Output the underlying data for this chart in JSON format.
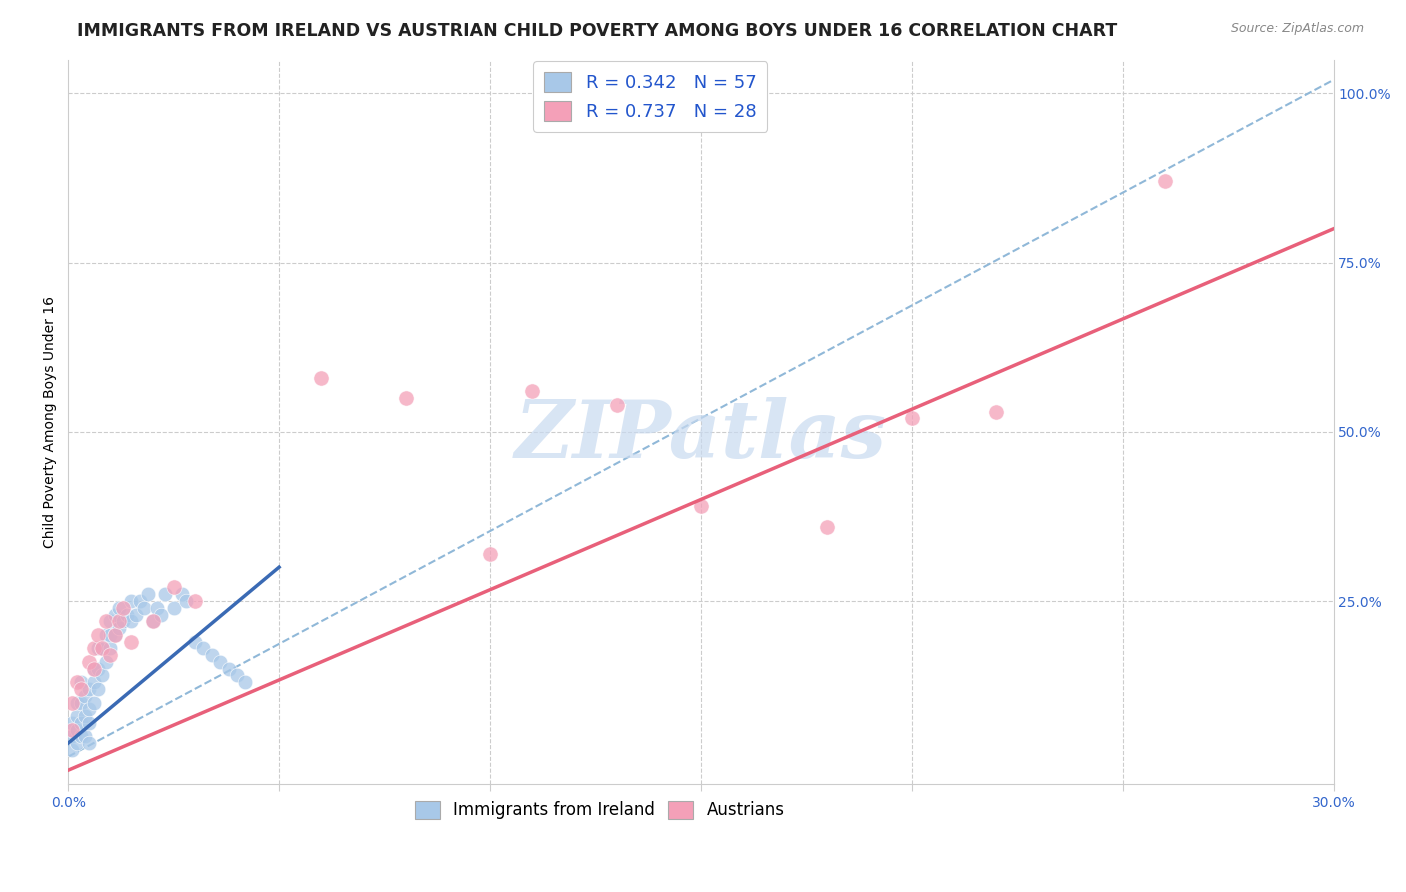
{
  "title": "IMMIGRANTS FROM IRELAND VS AUSTRIAN CHILD POVERTY AMONG BOYS UNDER 16 CORRELATION CHART",
  "source": "Source: ZipAtlas.com",
  "ylabel": "Child Poverty Among Boys Under 16",
  "xlim": [
    0.0,
    0.3
  ],
  "ylim": [
    -0.02,
    1.05
  ],
  "xticks": [
    0.0,
    0.05,
    0.1,
    0.15,
    0.2,
    0.25,
    0.3
  ],
  "xticklabels": [
    "0.0%",
    "",
    "",
    "",
    "",
    "",
    "30.0%"
  ],
  "yticks_right": [
    0.0,
    0.25,
    0.5,
    0.75,
    1.0
  ],
  "ytick_labels_right": [
    "",
    "25.0%",
    "50.0%",
    "75.0%",
    "100.0%"
  ],
  "legend1_label": "R = 0.342   N = 57",
  "legend2_label": "R = 0.737   N = 28",
  "legend_bottom1": "Immigrants from Ireland",
  "legend_bottom2": "Austrians",
  "ireland_color": "#a8c8e8",
  "austrian_color": "#f4a0b8",
  "ireland_line_color": "#3a6ab4",
  "austrian_line_color": "#e8607a",
  "dashed_line_color": "#90b8d8",
  "watermark_color": "#c8daf0",
  "title_fontsize": 12.5,
  "axis_label_fontsize": 10,
  "tick_fontsize": 10,
  "ireland_scatter_x": [
    0.001,
    0.001,
    0.001,
    0.002,
    0.002,
    0.002,
    0.002,
    0.003,
    0.003,
    0.003,
    0.003,
    0.004,
    0.004,
    0.004,
    0.005,
    0.005,
    0.005,
    0.005,
    0.006,
    0.006,
    0.006,
    0.007,
    0.007,
    0.007,
    0.008,
    0.008,
    0.009,
    0.009,
    0.01,
    0.01,
    0.01,
    0.011,
    0.011,
    0.012,
    0.012,
    0.013,
    0.014,
    0.015,
    0.015,
    0.016,
    0.017,
    0.018,
    0.019,
    0.02,
    0.021,
    0.022,
    0.023,
    0.025,
    0.027,
    0.028,
    0.03,
    0.032,
    0.034,
    0.036,
    0.038,
    0.04,
    0.042
  ],
  "ireland_scatter_y": [
    0.03,
    0.05,
    0.07,
    0.04,
    0.06,
    0.08,
    0.1,
    0.05,
    0.07,
    0.1,
    0.13,
    0.05,
    0.08,
    0.11,
    0.04,
    0.07,
    0.09,
    0.12,
    0.1,
    0.13,
    0.15,
    0.12,
    0.15,
    0.18,
    0.14,
    0.18,
    0.16,
    0.2,
    0.18,
    0.2,
    0.22,
    0.2,
    0.23,
    0.21,
    0.24,
    0.22,
    0.23,
    0.22,
    0.25,
    0.23,
    0.25,
    0.24,
    0.26,
    0.22,
    0.24,
    0.23,
    0.26,
    0.24,
    0.26,
    0.25,
    0.19,
    0.18,
    0.17,
    0.16,
    0.15,
    0.14,
    0.13
  ],
  "austrian_scatter_x": [
    0.001,
    0.001,
    0.002,
    0.003,
    0.005,
    0.006,
    0.006,
    0.007,
    0.008,
    0.009,
    0.01,
    0.011,
    0.012,
    0.013,
    0.015,
    0.02,
    0.025,
    0.03,
    0.06,
    0.08,
    0.1,
    0.11,
    0.13,
    0.15,
    0.18,
    0.2,
    0.22,
    0.26
  ],
  "austrian_scatter_y": [
    0.06,
    0.1,
    0.13,
    0.12,
    0.16,
    0.18,
    0.15,
    0.2,
    0.18,
    0.22,
    0.17,
    0.2,
    0.22,
    0.24,
    0.19,
    0.22,
    0.27,
    0.25,
    0.58,
    0.55,
    0.32,
    0.56,
    0.54,
    0.39,
    0.36,
    0.52,
    0.53,
    0.87
  ],
  "ireland_trend_x": [
    0.0,
    0.05
  ],
  "ireland_trend_y": [
    0.04,
    0.3
  ],
  "austrian_trend_x": [
    0.0,
    0.3
  ],
  "austrian_trend_y": [
    0.0,
    0.8
  ],
  "dashed_trend_x": [
    0.0,
    0.3
  ],
  "dashed_trend_y": [
    0.02,
    1.02
  ]
}
